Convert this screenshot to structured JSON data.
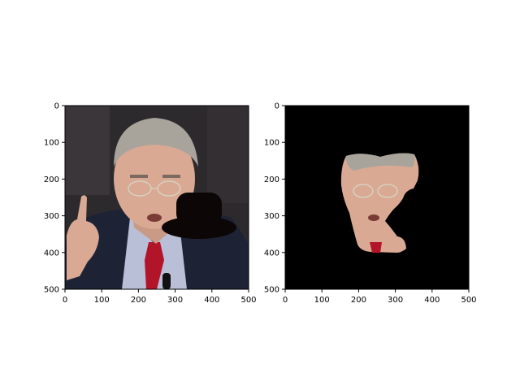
{
  "panels": [
    {
      "name": "left-panel",
      "content": "face photograph with occluding black hat",
      "x_ticks": [
        "0",
        "100",
        "200",
        "300",
        "400",
        "500"
      ],
      "y_ticks": [
        "0",
        "100",
        "200",
        "300",
        "400",
        "500"
      ]
    },
    {
      "name": "right-panel",
      "content": "segmented face mask on black background",
      "x_ticks": [
        "0",
        "100",
        "200",
        "300",
        "400",
        "500"
      ],
      "y_ticks": [
        "0",
        "100",
        "200",
        "300",
        "400",
        "500"
      ]
    }
  ],
  "colors": {
    "photo_background": "#2c2a2c",
    "suit": "#1e2235",
    "shirt": "#b9bfd6",
    "tie": "#b2142a",
    "skin": "#d9a993",
    "hair": "#a8a49c",
    "hat": "#0d0606",
    "mask_background": "#000000"
  }
}
